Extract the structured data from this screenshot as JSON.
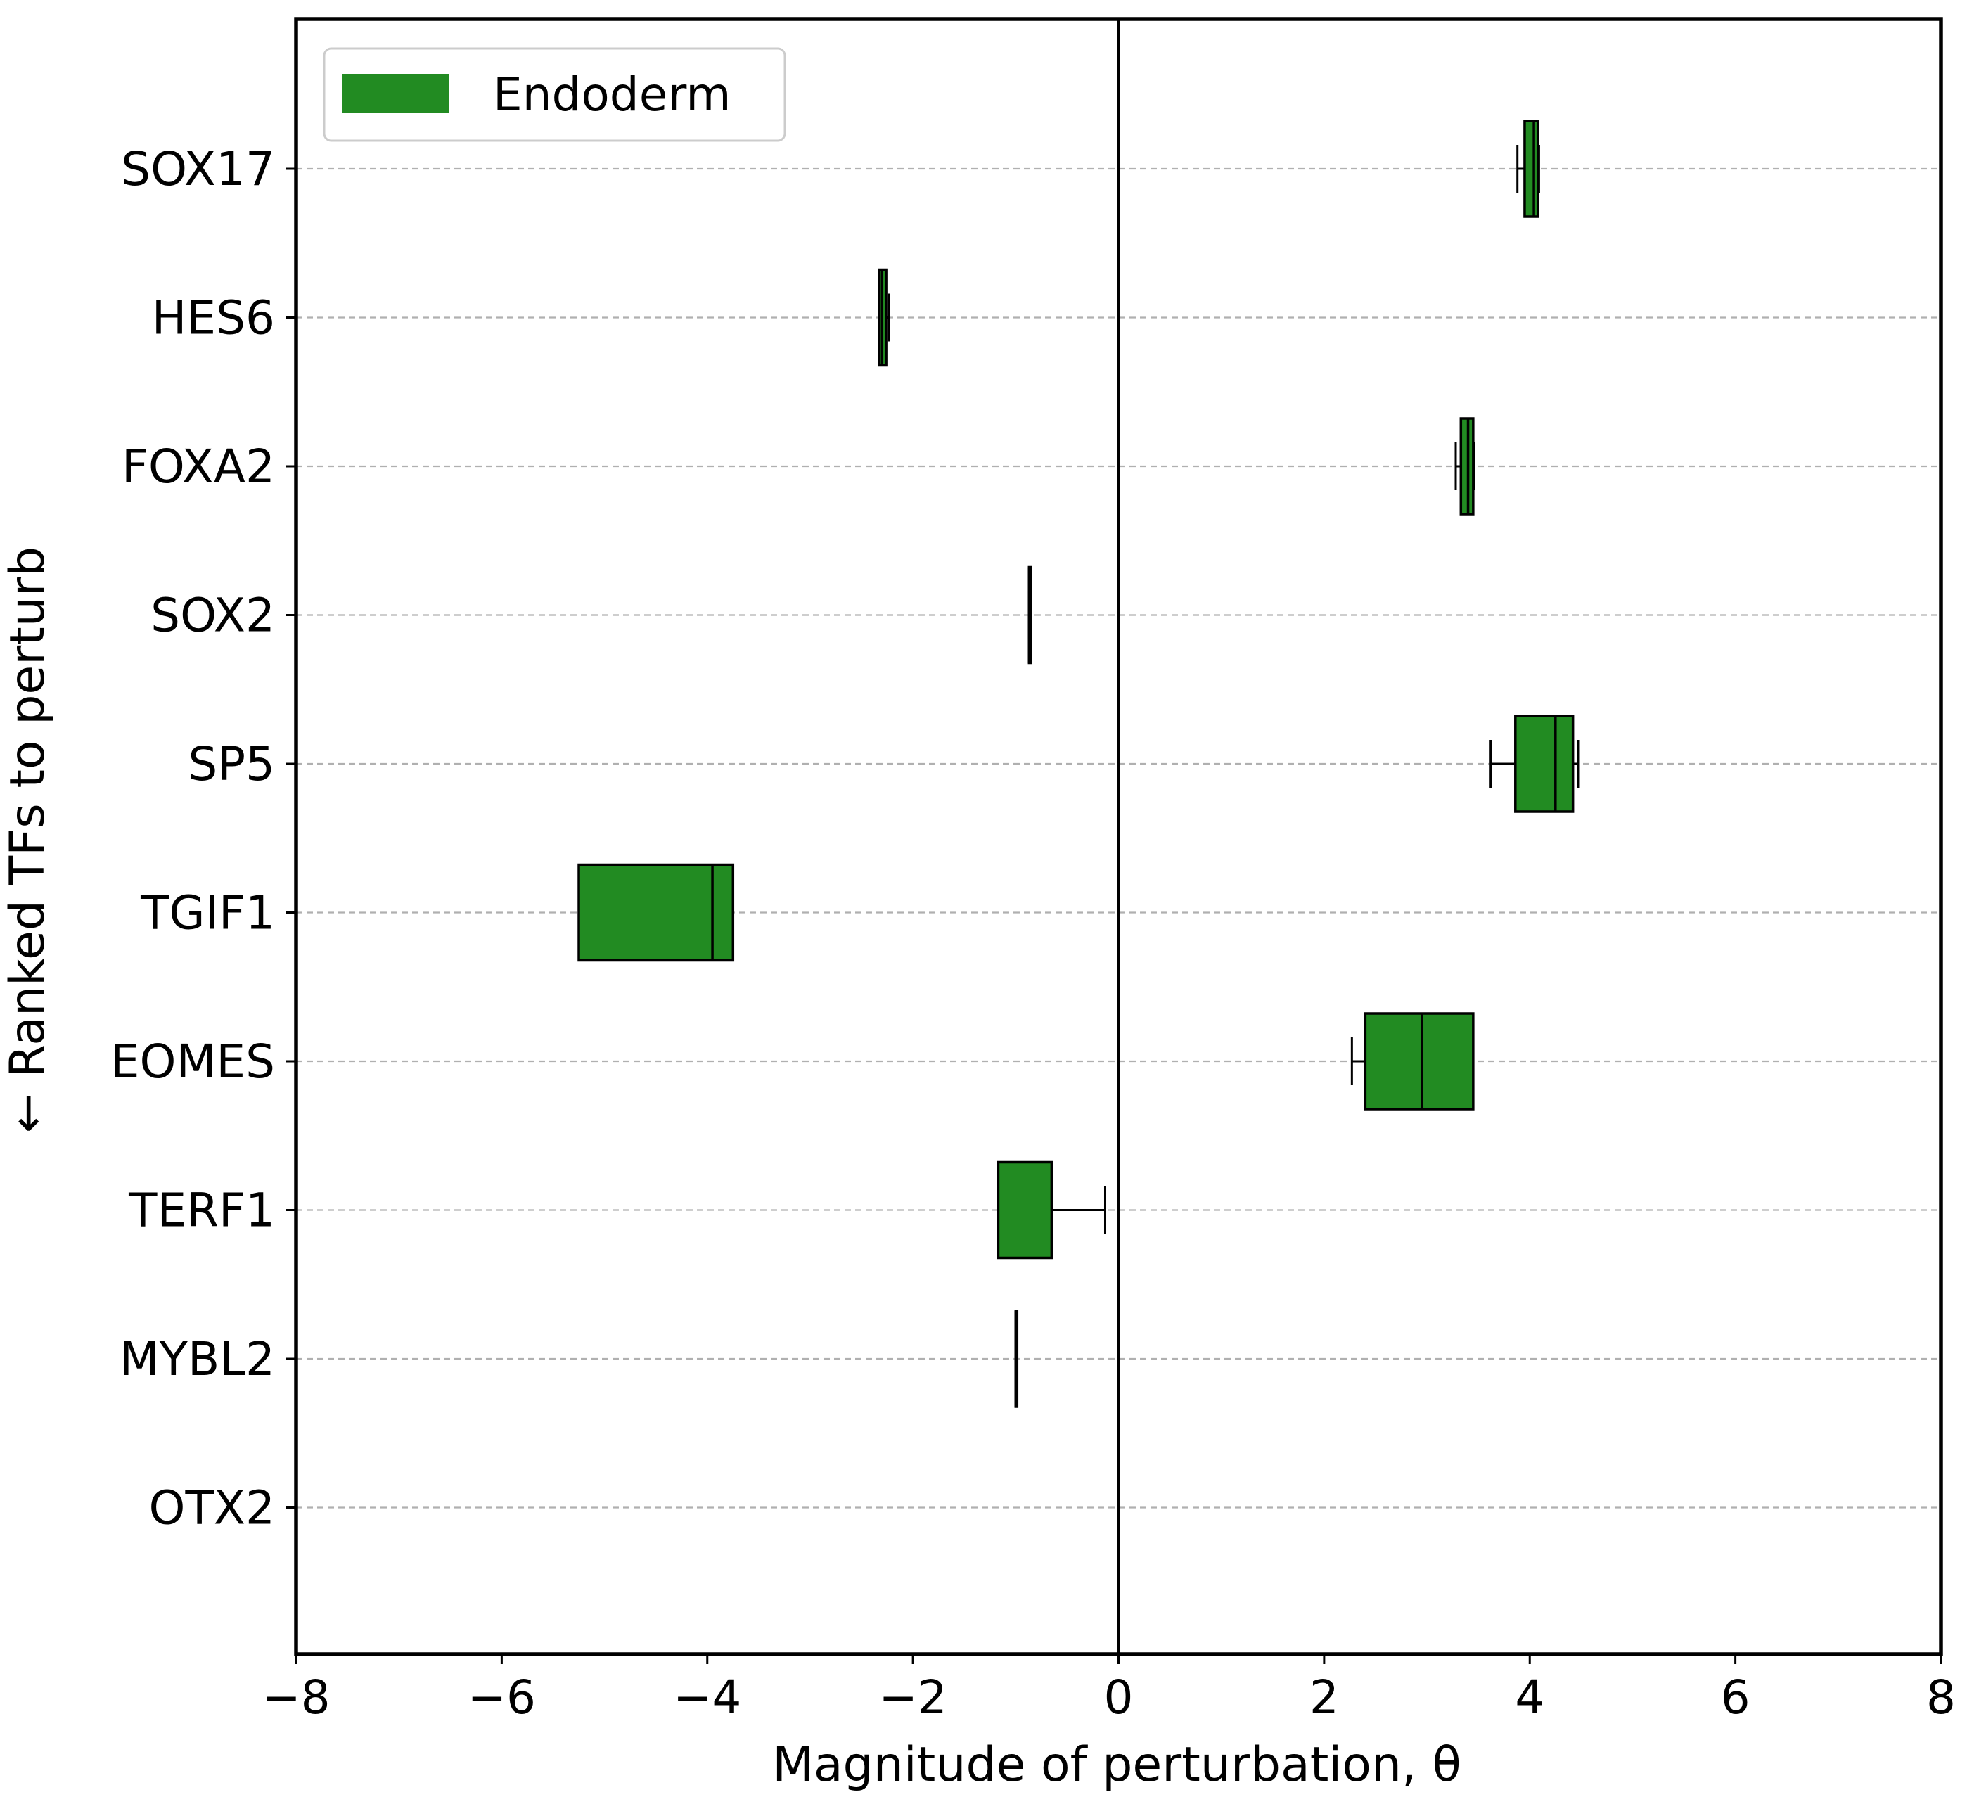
{
  "chart_data": {
    "type": "boxplot",
    "orientation": "horizontal",
    "title": "",
    "xlabel": "Magnitude of perturbation, θ",
    "ylabel": "← Ranked TFs to perturb",
    "xlim": [
      -8,
      8
    ],
    "xticks": [
      -8,
      -6,
      -4,
      -2,
      0,
      2,
      4,
      6,
      8
    ],
    "xtick_labels": [
      "−8",
      "−6",
      "−4",
      "−2",
      "0",
      "2",
      "4",
      "6",
      "8"
    ],
    "categories": [
      "SOX17",
      "HES6",
      "FOXA2",
      "SOX2",
      "SP5",
      "TGIF1",
      "EOMES",
      "TERF1",
      "MYBL2",
      "OTX2"
    ],
    "reference_line_x": 0,
    "grid": "horizontal dashed at each category",
    "legend": {
      "position": "top-left",
      "entries": [
        {
          "label": "Endoderm",
          "color": "#228B22"
        }
      ]
    },
    "series": [
      {
        "name": "Endoderm",
        "color": "#228B22",
        "boxes": [
          {
            "category": "SOX17",
            "whisker_low": 3.88,
            "q1": 3.95,
            "median": 4.04,
            "q3": 4.08,
            "whisker_high": 4.09
          },
          {
            "category": "HES6",
            "whisker_low": -2.33,
            "q1": -2.33,
            "median": -2.3,
            "q3": -2.26,
            "whisker_high": -2.23
          },
          {
            "category": "FOXA2",
            "whisker_low": 3.28,
            "q1": 3.33,
            "median": 3.4,
            "q3": 3.45,
            "whisker_high": 3.46
          },
          {
            "category": "SOX2",
            "whisker_low": -0.87,
            "q1": -0.87,
            "median": -0.87,
            "q3": -0.87,
            "whisker_high": -0.87
          },
          {
            "category": "SP5",
            "whisker_low": 3.62,
            "q1": 3.86,
            "median": 4.25,
            "q3": 4.42,
            "whisker_high": 4.47
          },
          {
            "category": "TGIF1",
            "whisker_low": -5.25,
            "q1": -5.25,
            "median": -3.95,
            "q3": -3.75,
            "whisker_high": -3.75
          },
          {
            "category": "EOMES",
            "whisker_low": 2.27,
            "q1": 2.4,
            "median": 2.95,
            "q3": 3.45,
            "whisker_high": 3.45
          },
          {
            "category": "TERF1",
            "whisker_low": -1.17,
            "q1": -1.17,
            "median": -0.65,
            "q3": -0.65,
            "whisker_high": -0.13
          },
          {
            "category": "MYBL2",
            "whisker_low": -1.0,
            "q1": -1.0,
            "median": -1.0,
            "q3": -1.0,
            "whisker_high": -1.0
          }
        ]
      }
    ]
  },
  "colors": {
    "box_fill": "#228B22",
    "edge": "#000000",
    "grid": "#b0b0b0",
    "background": "#ffffff"
  }
}
